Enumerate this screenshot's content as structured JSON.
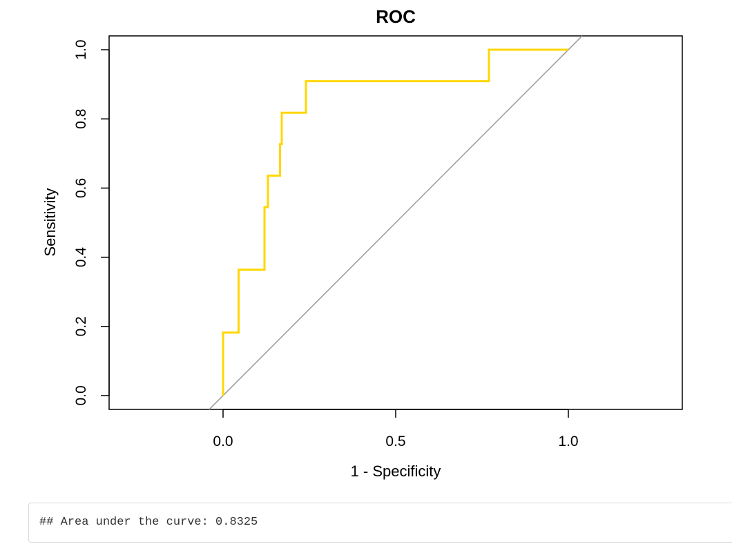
{
  "chart_data": {
    "type": "line",
    "title": "ROC",
    "xlabel": "1 - Specificity",
    "ylabel": "Sensitivity",
    "xlim": [
      -0.33,
      1.33
    ],
    "ylim": [
      -0.04,
      1.04
    ],
    "x_ticks": [
      0.0,
      0.5,
      1.0
    ],
    "x_tick_labels": [
      "0.0",
      "0.5",
      "1.0"
    ],
    "y_ticks": [
      0.0,
      0.2,
      0.4,
      0.6,
      0.8,
      1.0
    ],
    "y_tick_labels": [
      "0.0",
      "0.2",
      "0.4",
      "0.6",
      "0.8",
      "1.0"
    ],
    "grid": false,
    "series": [
      {
        "color": "#FFD700",
        "x": [
          0.0,
          0.0,
          0.045,
          0.045,
          0.12,
          0.12,
          0.13,
          0.13,
          0.165,
          0.165,
          0.17,
          0.17,
          0.24,
          0.24,
          0.77,
          0.77,
          1.0
        ],
        "y": [
          0.0,
          0.182,
          0.182,
          0.364,
          0.364,
          0.545,
          0.545,
          0.636,
          0.636,
          0.727,
          0.727,
          0.818,
          0.818,
          0.909,
          0.909,
          1.0,
          1.0
        ]
      }
    ],
    "reference_line": {
      "color": "#A0A0A0",
      "x": [
        -0.04,
        1.04
      ],
      "y": [
        -0.04,
        1.04
      ]
    }
  },
  "output": {
    "text": "## Area under the curve: 0.8325"
  }
}
